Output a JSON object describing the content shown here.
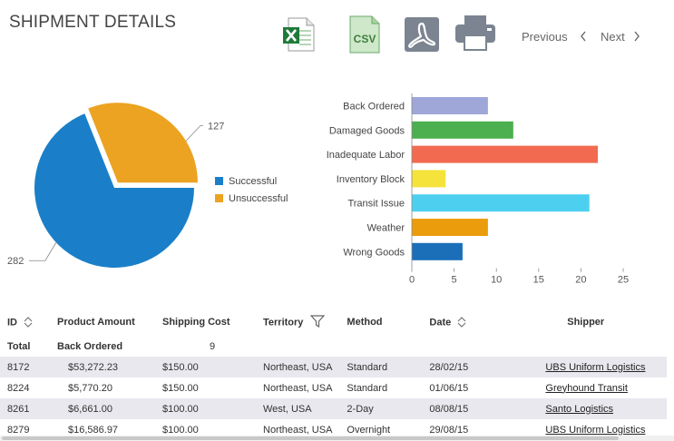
{
  "header": {
    "title": "SHIPMENT DETAILS",
    "previous_label": "Previous",
    "next_label": "Next",
    "csv_label": "CSV"
  },
  "icons": {
    "excel": "excel-export-icon",
    "csv": "csv-export-icon",
    "pdf": "pdf-export-icon",
    "print": "printer-icon",
    "prev": "chevron-left-icon",
    "next": "chevron-right-icon"
  },
  "chart_data": [
    {
      "type": "pie",
      "labels": [
        "Successful",
        "Unsuccessful"
      ],
      "values": [
        282,
        127
      ],
      "data_labels": [
        "282",
        "127"
      ],
      "colors": [
        "#1a7fc8",
        "#eba321"
      ],
      "legend_placement": "right"
    },
    {
      "type": "bar",
      "orientation": "horizontal",
      "categories": [
        "Back Ordered",
        "Damaged Goods",
        "Inadequate Labor",
        "Inventory Block",
        "Transit Issue",
        "Weather",
        "Wrong Goods"
      ],
      "values": [
        9,
        12,
        22,
        4,
        21,
        9,
        6
      ],
      "colors": [
        "#9ea7d8",
        "#4caf50",
        "#f26b50",
        "#f5e33c",
        "#4dd0f0",
        "#eb9c0c",
        "#1a6fb8"
      ],
      "xlim": [
        0,
        25
      ],
      "ticks": [
        "0",
        "5",
        "10",
        "15",
        "20",
        "25"
      ],
      "grid": false
    }
  ],
  "table": {
    "columns": [
      "ID",
      "Product Amount",
      "Shipping Cost",
      "Territory",
      "Method",
      "Date",
      "Shipper"
    ],
    "total": {
      "label": "Total",
      "group": "Back Ordered",
      "count": "9"
    },
    "rows": [
      {
        "id": "8172",
        "amount": "$53,272.23",
        "cost": "$150.00",
        "territory": "Northeast, USA",
        "method": "Standard",
        "date": "28/02/15",
        "shipper": "UBS Uniform Logistics"
      },
      {
        "id": "8224",
        "amount": "$5,770.20",
        "cost": "$150.00",
        "territory": "Northeast, USA",
        "method": "Standard",
        "date": "01/06/15",
        "shipper": "Greyhound Transit"
      },
      {
        "id": "8261",
        "amount": "$6,661.00",
        "cost": "$100.00",
        "territory": "West, USA",
        "method": "2-Day",
        "date": "08/08/15",
        "shipper": "Santo Logistics"
      },
      {
        "id": "8279",
        "amount": "$16,586.97",
        "cost": "$100.00",
        "territory": "Northeast, USA",
        "method": "Overnight",
        "date": "29/08/15",
        "shipper": "UBS Uniform Logistics"
      }
    ]
  }
}
